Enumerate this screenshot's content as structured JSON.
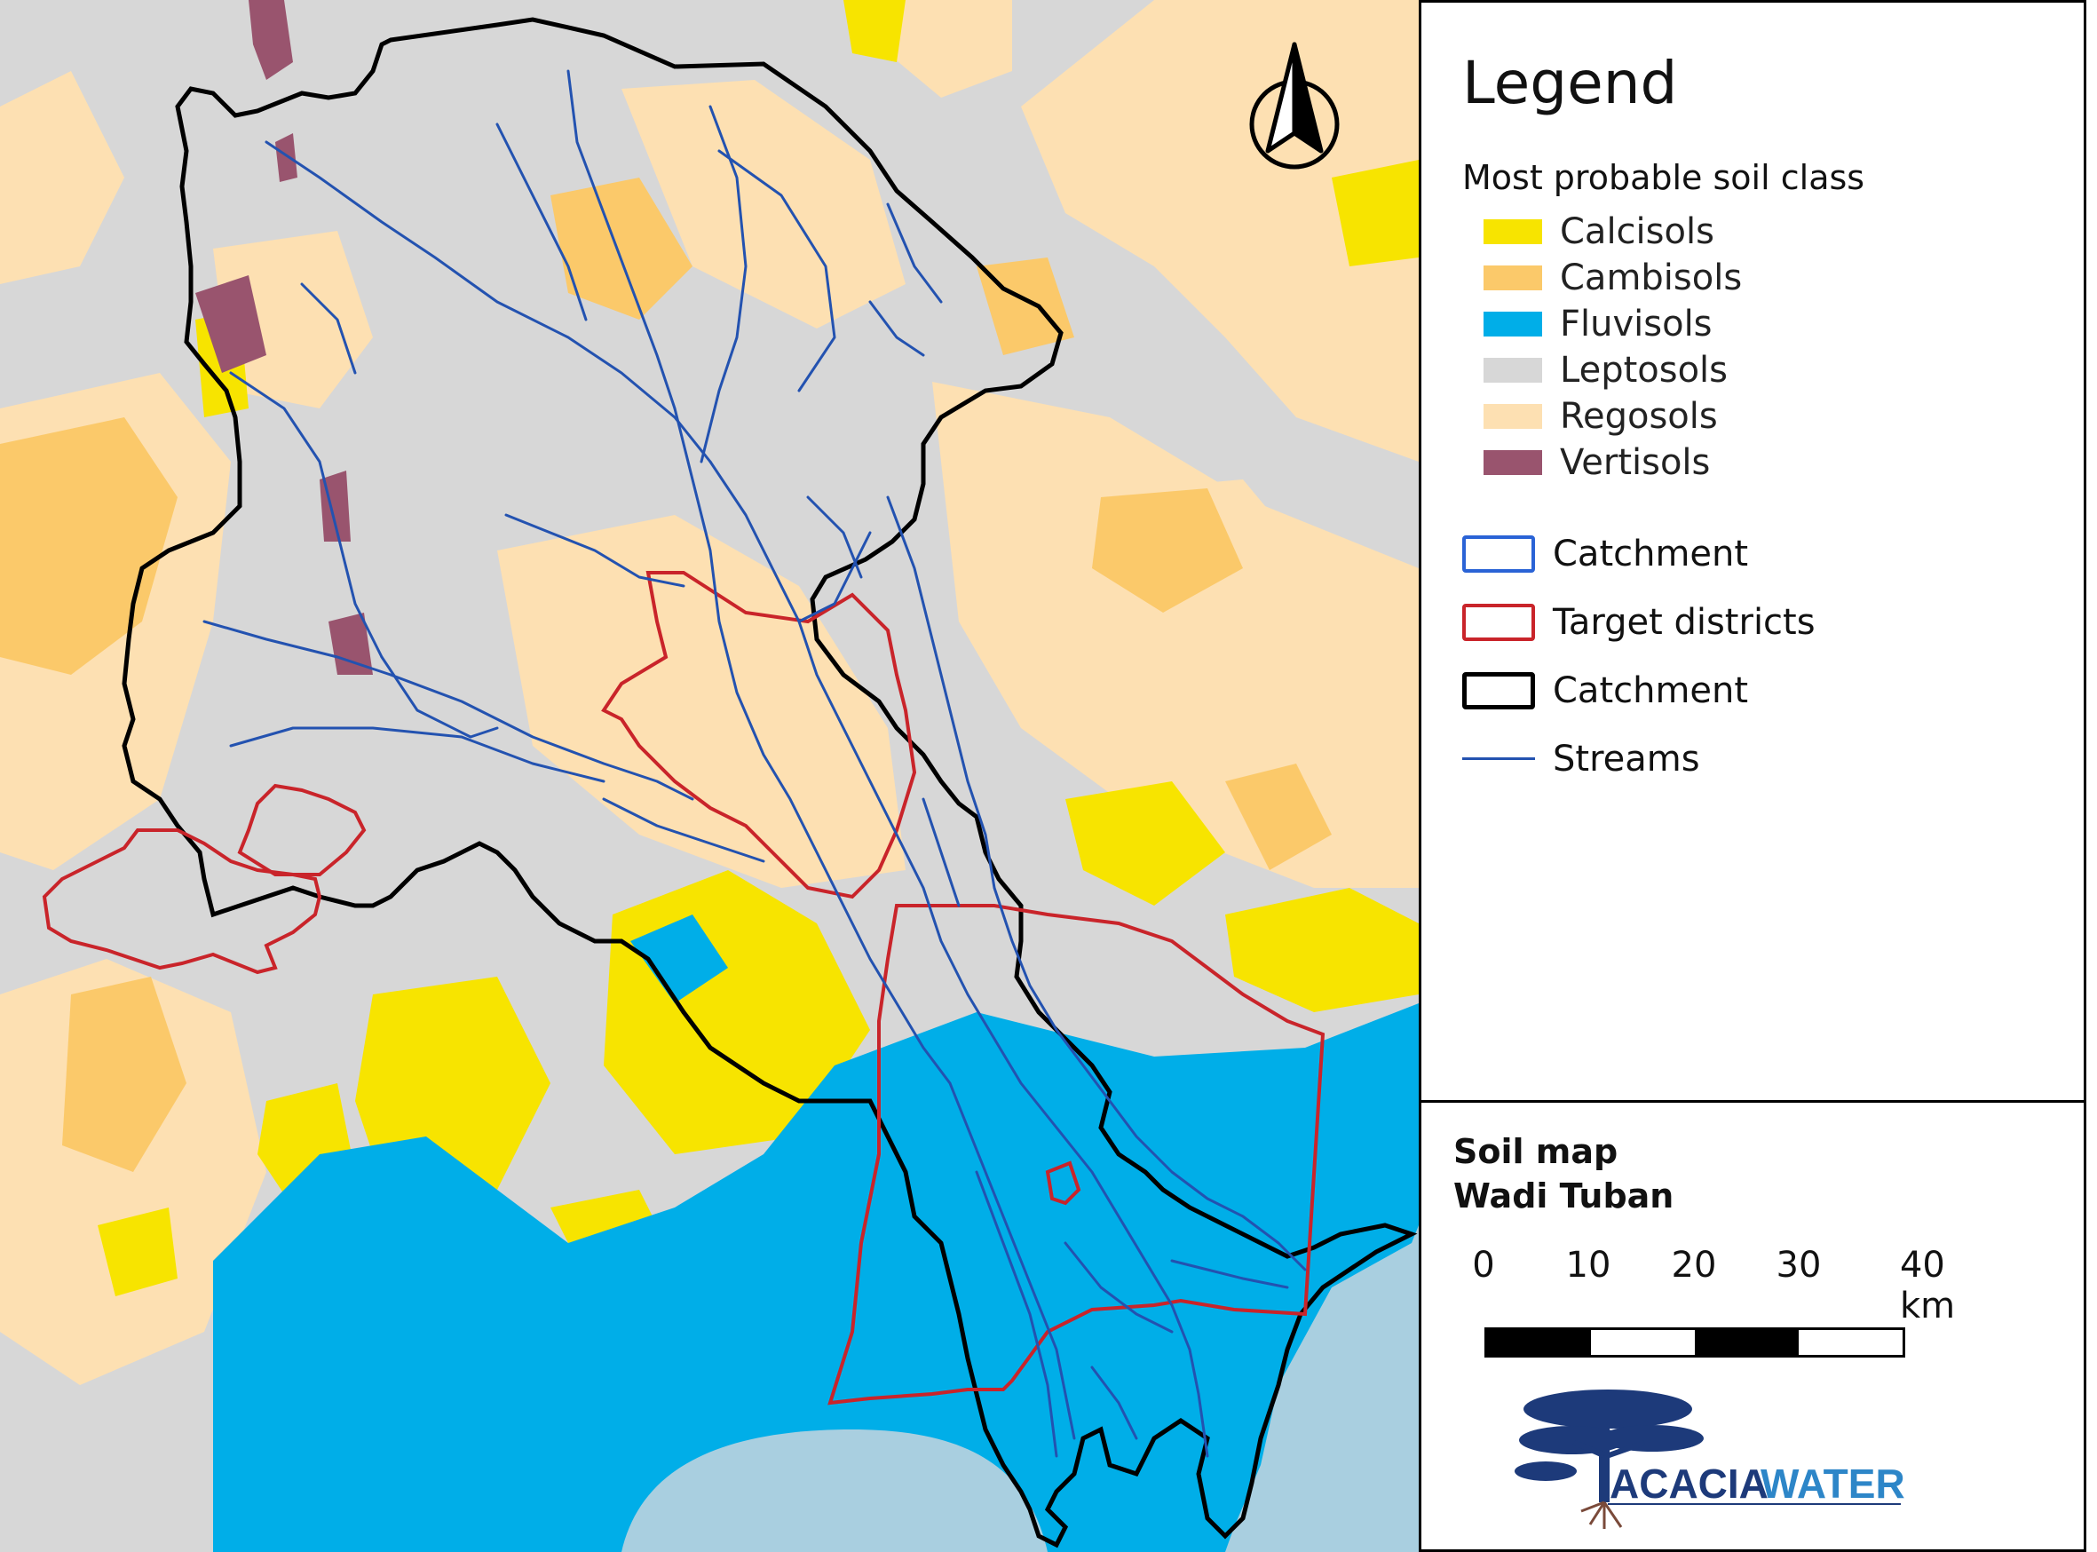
{
  "legend": {
    "title": "Legend",
    "soil_heading": "Most probable soil class",
    "soil_classes": [
      {
        "label": "Calcisols",
        "color": "#f7e400"
      },
      {
        "label": "Cambisols",
        "color": "#fbc96a"
      },
      {
        "label": "Fluvisols",
        "color": "#00aee8"
      },
      {
        "label": "Leptosols",
        "color": "#d7d7d7"
      },
      {
        "label": "Regosols",
        "color": "#fde0b2"
      },
      {
        "label": "Vertisols",
        "color": "#99546e"
      }
    ],
    "layers": [
      {
        "label": "Catchment",
        "style": "box",
        "color": "#2a63d6"
      },
      {
        "label": "Target districts",
        "style": "box",
        "color": "#c9242a"
      },
      {
        "label": "Catchment",
        "style": "box",
        "color": "#000000"
      },
      {
        "label": "Streams",
        "style": "line",
        "color": "#2352b0"
      }
    ]
  },
  "map_info": {
    "title_line1": "Soil map",
    "title_line2": "Wadi Tuban"
  },
  "scale_bar": {
    "ticks": [
      "0",
      "10",
      "20",
      "30",
      "40 km"
    ]
  },
  "logo": {
    "text_part1": "ACACIA",
    "text_part2": "WATER"
  },
  "colors": {
    "sea": "#a9cfe0",
    "catchment_outline": "#000000",
    "district_outline": "#c9242a",
    "stream": "#2352b0"
  },
  "icons": {
    "north_arrow": "north-arrow-icon"
  }
}
